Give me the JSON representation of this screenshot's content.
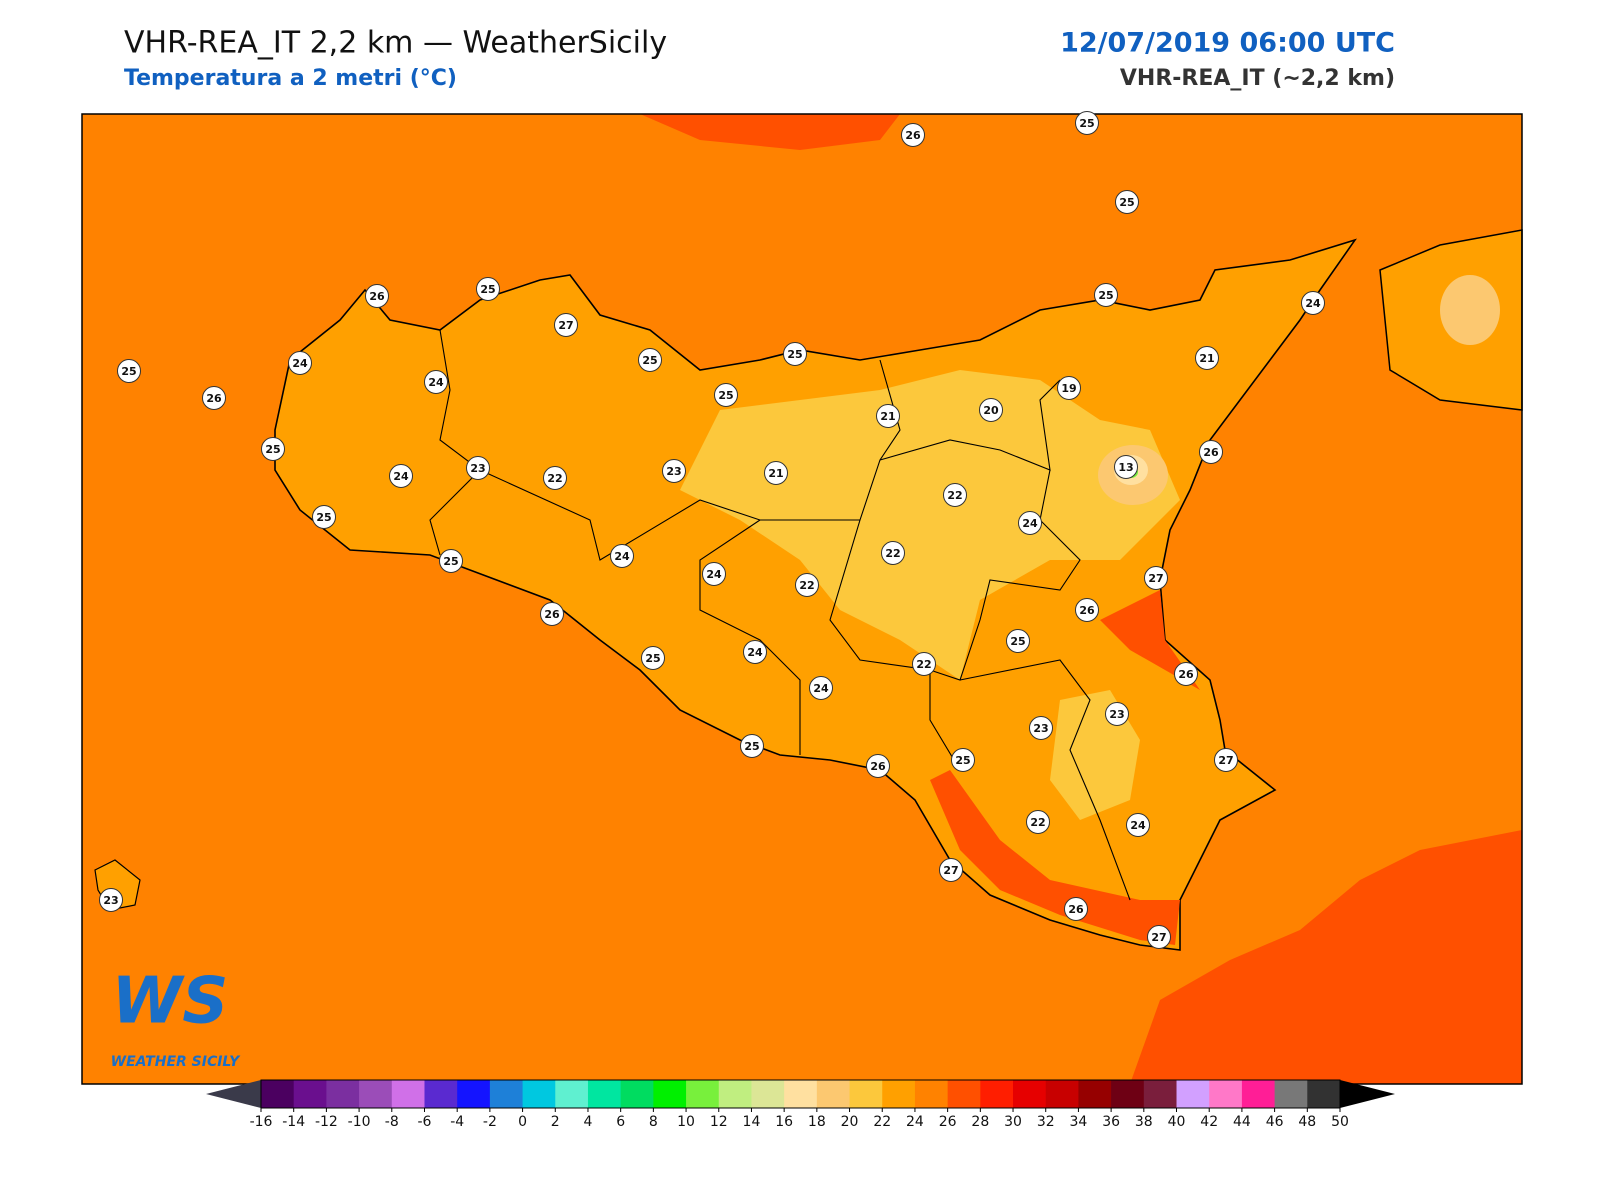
{
  "header": {
    "title": "VHR-REA_IT 2,2 km — WeatherSicily",
    "subtitle": "Temperatura a 2 metri (°C)",
    "datetime": "12/07/2019 06:00 UTC",
    "model": "VHR-REA_IT (~2,2 km)"
  },
  "stations": [
    26,
    25,
    25,
    26,
    25,
    27,
    25,
    24,
    24,
    26,
    25,
    25,
    25,
    25,
    24,
    21,
    19,
    20,
    21,
    25,
    23,
    24,
    22,
    23,
    21,
    13,
    26,
    22,
    24,
    25,
    25,
    24,
    24,
    22,
    22,
    27,
    26,
    26,
    25,
    25,
    24,
    22,
    24,
    26,
    23,
    23,
    25,
    26,
    25,
    27,
    22,
    24,
    27,
    26,
    27,
    23
  ],
  "logo": {
    "mark": "WS",
    "caption": "WEATHER SICILY"
  },
  "colorbar": {
    "ticks": [
      -16,
      -14,
      -12,
      -10,
      -8,
      -6,
      -4,
      -2,
      0,
      2,
      4,
      6,
      8,
      10,
      12,
      14,
      16,
      18,
      20,
      22,
      24,
      26,
      28,
      30,
      32,
      34,
      36,
      38,
      40,
      42,
      44,
      46,
      48,
      50
    ],
    "colors": [
      "#4b0060",
      "#6a0f8e",
      "#7b2fa0",
      "#9b4db8",
      "#d070e8",
      "#5a2ad0",
      "#1414ff",
      "#1e80d8",
      "#00c8e0",
      "#5ff0d0",
      "#00e6a0",
      "#00dc60",
      "#00f000",
      "#78f03c",
      "#c0ee80",
      "#dce696",
      "#ffe0a0",
      "#fcc870",
      "#fcc83c",
      "#ffa000",
      "#ff8200",
      "#ff5000",
      "#ff1e00",
      "#e60000",
      "#c80000",
      "#960000",
      "#6e0014",
      "#7a1e3c",
      "#d2a0ff",
      "#ff78c8",
      "#ff1e96",
      "#787878",
      "#323232"
    ],
    "under_color": "#3a3a4a",
    "over_color": "#000000"
  }
}
